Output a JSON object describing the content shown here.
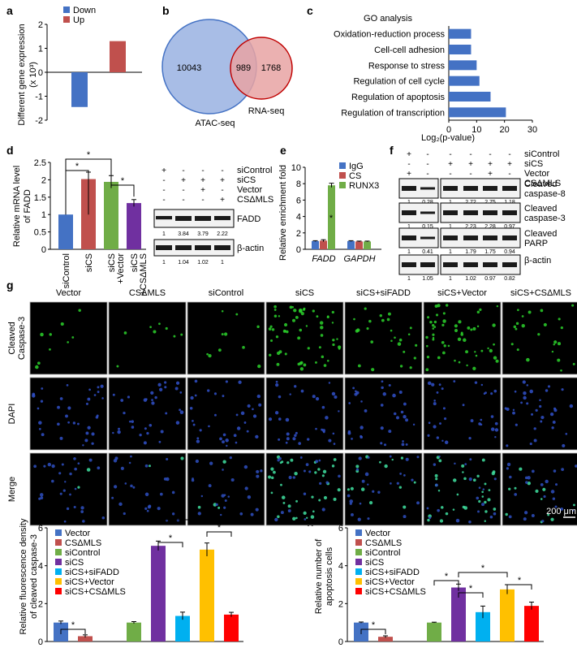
{
  "panel_labels": {
    "a": "a",
    "b": "b",
    "c": "c",
    "d": "d",
    "e": "e",
    "f": "f",
    "g": "g",
    "h": "h"
  },
  "panel_a": {
    "ylabel": "Different gene expression",
    "yunit": "(x 10³)",
    "legend": [
      {
        "name": "Down",
        "color": "#4472c4"
      },
      {
        "name": "Up",
        "color": "#c0504d"
      }
    ]
  },
  "panel_b": {
    "left_set": "ATAC-seq",
    "right_set": "RNA-seq",
    "left_only": "10043",
    "overlap": "989",
    "right_only": "1768"
  },
  "panel_c": {
    "title": "GO analysis",
    "xlabel": "Log₂(p-value)"
  },
  "panel_d": {
    "ylabel": "Relative mRNA level",
    "ylabel2": "of FADD",
    "star": "*",
    "blot_rows": [
      {
        "label": "siControl",
        "marks": [
          "+",
          "-",
          "-",
          "-"
        ]
      },
      {
        "label": "siCS",
        "marks": [
          "-",
          "+",
          "+",
          "+"
        ]
      },
      {
        "label": "Vector",
        "marks": [
          "-",
          "-",
          "+",
          "-"
        ]
      },
      {
        "label": "CSΔMLS",
        "marks": [
          "-",
          "-",
          "-",
          "+"
        ]
      }
    ],
    "blot_fadd": "FADD",
    "fadd_quant": [
      "1",
      "3.84",
      "3.79",
      "2.22"
    ],
    "blot_actin": "β-actin",
    "actin_quant": [
      "1",
      "1.04",
      "1.02",
      "1"
    ]
  },
  "panel_e": {
    "ylabel": "Relative enrichment fold",
    "categories": [
      "FADD",
      "GAPDH"
    ],
    "legend": [
      {
        "name": "IgG",
        "color": "#4472c4"
      },
      {
        "name": "CS",
        "color": "#c0504d"
      },
      {
        "name": "RUNX3",
        "color": "#70ad47"
      }
    ],
    "star": "*"
  },
  "panel_f": {
    "rows": [
      {
        "label": "siControl",
        "marks": [
          "+",
          "-",
          "-",
          "-",
          "-",
          "-"
        ]
      },
      {
        "label": "siCS",
        "marks": [
          "-",
          "-",
          "+",
          "+",
          "+",
          "+"
        ]
      },
      {
        "label": "Vector",
        "marks": [
          "+",
          "-",
          "-",
          "-",
          "+",
          "-"
        ]
      },
      {
        "label": "CSΔMLS",
        "marks": [
          "-",
          "+",
          "-",
          "-",
          "-",
          "+"
        ]
      }
    ],
    "blots": [
      {
        "label": "Cleaved",
        "label2": "caspase-8",
        "q": [
          "1",
          "0.28",
          "1",
          "2.72",
          "2.75",
          "1.18"
        ]
      },
      {
        "label": "Cleaved",
        "label2": "caspase-3",
        "q": [
          "1",
          "0.15",
          "1",
          "2.23",
          "2.28",
          "0.97"
        ]
      },
      {
        "label": "Cleaved",
        "label2": "PARP",
        "q": [
          "1",
          "0.41",
          "1",
          "1.79",
          "1.75",
          "0.94"
        ]
      },
      {
        "label": "β-actin",
        "label2": "",
        "q": [
          "1",
          "1.05",
          "1",
          "1.02",
          "0.97",
          "0.82"
        ]
      }
    ]
  },
  "panel_g": {
    "columns": [
      "Vector",
      "CSΔMLS",
      "siControl",
      "siCS",
      "siCS+siFADD",
      "siCS+Vector",
      "siCS+CSΔMLS"
    ],
    "rows": [
      {
        "label": "Cleaved",
        "label2": "Caspase-3"
      },
      {
        "label": "DAPI",
        "label2": ""
      },
      {
        "label": "Merge",
        "label2": ""
      }
    ],
    "scale_bar": "200 μm",
    "density": [
      0.05,
      0.03,
      0.08,
      0.9,
      0.35,
      0.85,
      0.3
    ]
  },
  "panel_gq": {
    "ylabel": "Relative fluorescence density",
    "ylabel2": "of cleaved caspase-3",
    "star": "*"
  },
  "panel_h": {
    "ylabel": "Relative number of",
    "ylabel2": "apoptosis cells",
    "star": "*"
  },
  "legend7": [
    {
      "name": "Vector",
      "color": "#4472c4"
    },
    {
      "name": "CSΔMLS",
      "color": "#c0504d"
    },
    {
      "name": "siControl",
      "color": "#70ad47"
    },
    {
      "name": "siCS",
      "color": "#7030a0"
    },
    {
      "name": "siCS+siFADD",
      "color": "#00b0f0"
    },
    {
      "name": "siCS+Vector",
      "color": "#ffc000"
    },
    {
      "name": "siCS+CSΔMLS",
      "color": "#ff0000"
    }
  ],
  "chart_data": [
    {
      "panel": "a",
      "type": "bar",
      "categories": [
        "Down",
        "Up"
      ],
      "values": [
        -1.45,
        1.3
      ],
      "ylim": [
        -2,
        2
      ],
      "yticks": [
        -2,
        -1,
        0,
        1,
        2
      ],
      "ylabel": "Different gene expression (x 10³)"
    },
    {
      "panel": "c",
      "type": "bar",
      "orientation": "horizontal",
      "title": "GO analysis",
      "categories": [
        "Oxidation-reduction process",
        "Cell-cell adhesion",
        "Response to stress",
        "Regulation of cell cycle",
        "Regulation of apoptosis",
        "Regulation of transcription"
      ],
      "values": [
        8,
        8,
        10,
        11,
        15,
        20.5
      ],
      "xlim": [
        0,
        30
      ],
      "xticks": [
        0,
        10,
        20,
        30
      ],
      "xlabel": "Log₂(p-value)"
    },
    {
      "panel": "d",
      "type": "bar",
      "categories": [
        "siControl",
        "siCS",
        "siCS +Vector",
        "siCS +CSΔMLS"
      ],
      "values": [
        1,
        2.02,
        1.94,
        1.33
      ],
      "errors": [
        0,
        0.2,
        0.18,
        0.1
      ],
      "colors": [
        "#4472c4",
        "#c0504d",
        "#70ad47",
        "#7030a0"
      ],
      "ylim": [
        0,
        2.5
      ],
      "yticks": [
        0,
        0.5,
        1,
        1.5,
        2,
        2.5
      ],
      "ylabel": "Relative mRNA level of FADD"
    },
    {
      "panel": "e",
      "type": "bar",
      "categories": [
        "FADD",
        "GAPDH"
      ],
      "series": [
        {
          "name": "IgG",
          "values": [
            1.0,
            1.0
          ],
          "errors": [
            0.05,
            0.05
          ]
        },
        {
          "name": "CS",
          "values": [
            1.05,
            0.95
          ],
          "errors": [
            0.12,
            0.05
          ]
        },
        {
          "name": "RUNX3",
          "values": [
            7.8,
            0.95
          ],
          "errors": [
            0.25,
            0.05
          ]
        }
      ],
      "ylim": [
        0,
        10
      ],
      "yticks": [
        0,
        2,
        4,
        6,
        8,
        10
      ],
      "ylabel": "Relative enrichment fold"
    },
    {
      "panel": "g",
      "type": "bar",
      "categories": [
        "Vector",
        "CSΔMLS",
        "siControl",
        "siCS",
        "siCS+siFADD",
        "siCS+Vector",
        "siCS+CSΔMLS"
      ],
      "values": [
        1.0,
        0.28,
        1.0,
        5.05,
        1.35,
        4.85,
        1.42
      ],
      "errors": [
        0.08,
        0.07,
        0.05,
        0.25,
        0.2,
        0.35,
        0.12
      ],
      "gap_after": 1,
      "ylim": [
        0,
        6
      ],
      "yticks": [
        0,
        2,
        4,
        6
      ],
      "ylabel": "Relative fluorescence density of cleaved caspase-3"
    },
    {
      "panel": "h",
      "type": "bar",
      "categories": [
        "Vector",
        "CSΔMLS",
        "siControl",
        "siCS",
        "siCS+siFADD",
        "siCS+Vector",
        "siCS+CSΔMLS"
      ],
      "values": [
        1.0,
        0.25,
        1.0,
        2.85,
        1.55,
        2.75,
        1.88
      ],
      "errors": [
        0.03,
        0.05,
        0.02,
        0.18,
        0.32,
        0.25,
        0.2
      ],
      "gap_after": 1,
      "ylim": [
        0,
        6
      ],
      "yticks": [
        0,
        2,
        4,
        6
      ],
      "ylabel": "Relative number of apoptosis cells"
    }
  ]
}
